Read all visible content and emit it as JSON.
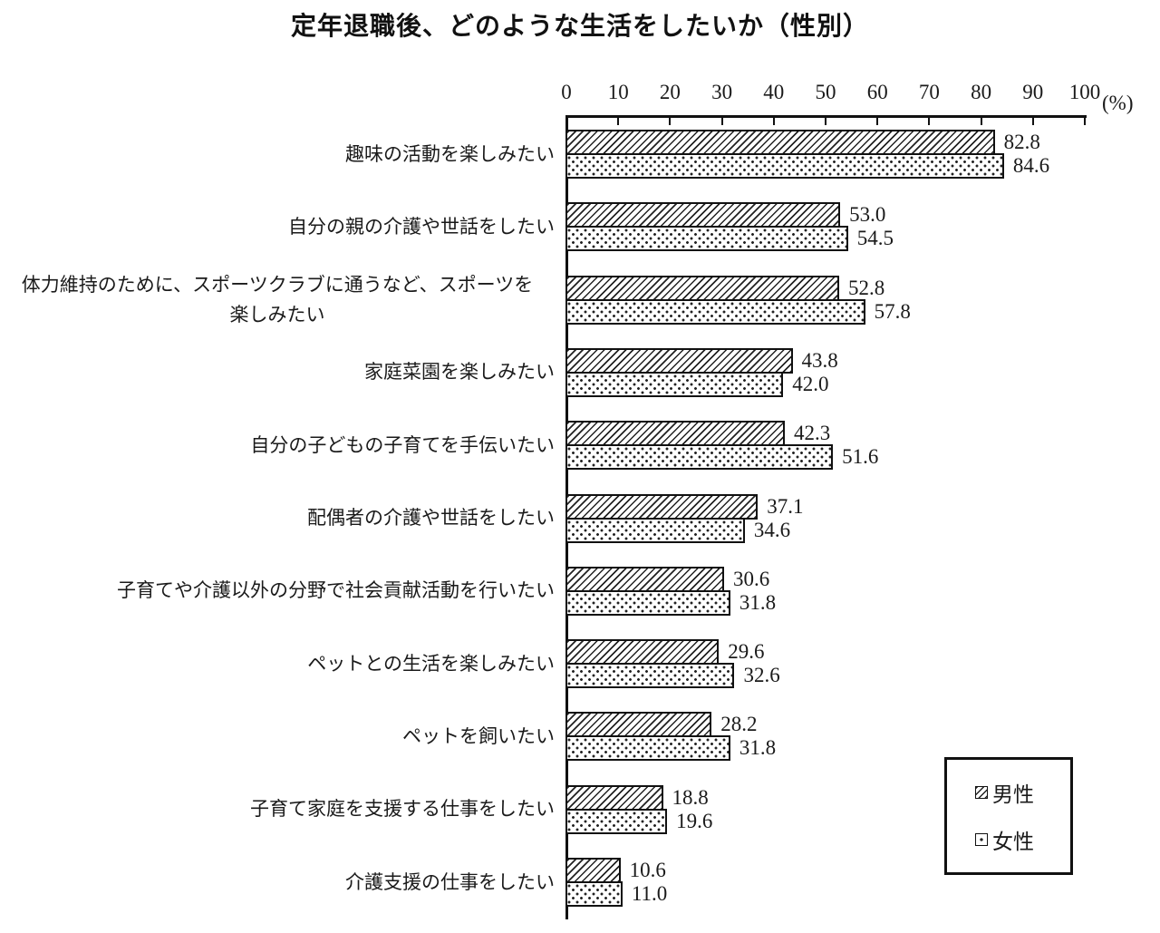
{
  "colors": {
    "ink": "#1a1a1a",
    "background": "#ffffff"
  },
  "chart_data": {
    "type": "bar",
    "orientation": "horizontal",
    "title": "定年退職後、どのような生活をしたいか（性別）",
    "unit_label": "(%)",
    "xlabel": "",
    "ylabel": "",
    "xlim": [
      0,
      100
    ],
    "x_ticks": [
      0,
      10,
      20,
      30,
      40,
      50,
      60,
      70,
      80,
      90,
      100
    ],
    "grid": false,
    "legend_position": "bottom-right",
    "value_label_decimals": 1,
    "categories": [
      "趣味の活動を楽しみたい",
      "自分の親の介護や世話をしたい",
      "体力維持のために、スポーツクラブに通うなど、スポーツを\n楽しみたい",
      "家庭菜園を楽しみたい",
      "自分の子どもの子育てを手伝いたい",
      "配偶者の介護や世話をしたい",
      "子育てや介護以外の分野で社会貢献活動を行いたい",
      "ペットとの生活を楽しみたい",
      "ペットを飼いたい",
      "子育て家庭を支援する仕事をしたい",
      "介護支援の仕事をしたい"
    ],
    "series": [
      {
        "name": "男性",
        "key": "male",
        "pattern": "diagonal-hatch",
        "values": [
          82.8,
          53.0,
          52.8,
          43.8,
          42.3,
          37.1,
          30.6,
          29.6,
          28.2,
          18.8,
          10.6
        ]
      },
      {
        "name": "女性",
        "key": "female",
        "pattern": "dots",
        "values": [
          84.6,
          54.5,
          57.8,
          42.0,
          51.6,
          34.6,
          31.8,
          32.6,
          31.8,
          19.6,
          11.0
        ]
      }
    ]
  }
}
